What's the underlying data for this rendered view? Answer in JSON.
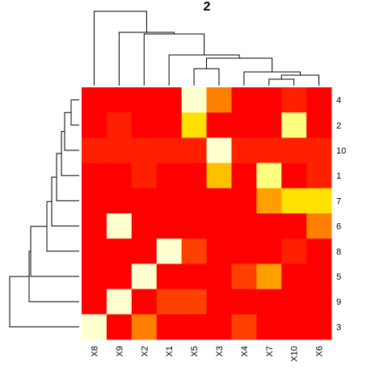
{
  "chart_data": {
    "type": "heatmap",
    "title": "2",
    "x_labels": [
      "X8",
      "X9",
      "X2",
      "X1",
      "X5",
      "X3",
      "X4",
      "X7",
      "X10",
      "X6"
    ],
    "y_labels": [
      "4",
      "2",
      "10",
      "1",
      "7",
      "6",
      "8",
      "5",
      "9",
      "3"
    ],
    "colors": {
      "red": "#ff0000",
      "red_orange": "#ff2000",
      "orange_red": "#ff4000",
      "orange": "#ff8000",
      "orange_yellow": "#ffa000",
      "gold": "#ffc000",
      "yellow": "#ffe000",
      "light_yellow": "#ffff80",
      "cream": "#ffffd0"
    },
    "cells": [
      [
        "red",
        "red",
        "red",
        "red",
        "cream",
        "orange",
        "red",
        "red",
        "red_orange",
        "red"
      ],
      [
        "red",
        "red_orange",
        "red",
        "red",
        "yellow",
        "red",
        "red",
        "red",
        "light_yellow",
        "red"
      ],
      [
        "red_orange",
        "red_orange",
        "red_orange",
        "red_orange",
        "red_orange",
        "cream",
        "red_orange",
        "red_orange",
        "red_orange",
        "red_orange"
      ],
      [
        "red",
        "red",
        "red_orange",
        "red",
        "red",
        "gold",
        "red",
        "light_yellow",
        "red",
        "red_orange"
      ],
      [
        "red",
        "red",
        "red",
        "red",
        "red",
        "red",
        "red",
        "orange_yellow",
        "yellow",
        "yellow"
      ],
      [
        "red",
        "cream",
        "red",
        "red",
        "red",
        "red",
        "red",
        "red",
        "red",
        "orange"
      ],
      [
        "red",
        "red",
        "red",
        "cream",
        "orange_red",
        "red",
        "red",
        "red",
        "red_orange",
        "red"
      ],
      [
        "red",
        "red",
        "cream",
        "red",
        "red",
        "red",
        "orange_red",
        "orange_yellow",
        "red",
        "red"
      ],
      [
        "red",
        "cream",
        "red",
        "orange_red",
        "orange_red",
        "red",
        "red",
        "red",
        "red",
        "red"
      ],
      [
        "cream",
        "red",
        "orange",
        "red",
        "red",
        "red",
        "orange_red",
        "red",
        "red",
        "red"
      ]
    ],
    "column_dendrogram": {
      "leaf_order": [
        "X8",
        "X9",
        "X2",
        "X1",
        "X5",
        "X3",
        "X4",
        "X7",
        "X10",
        "X6"
      ]
    },
    "row_dendrogram": {
      "leaf_order": [
        "4",
        "2",
        "10",
        "1",
        "7",
        "6",
        "8",
        "5",
        "9",
        "3"
      ]
    },
    "legend": "none",
    "grid": false
  }
}
